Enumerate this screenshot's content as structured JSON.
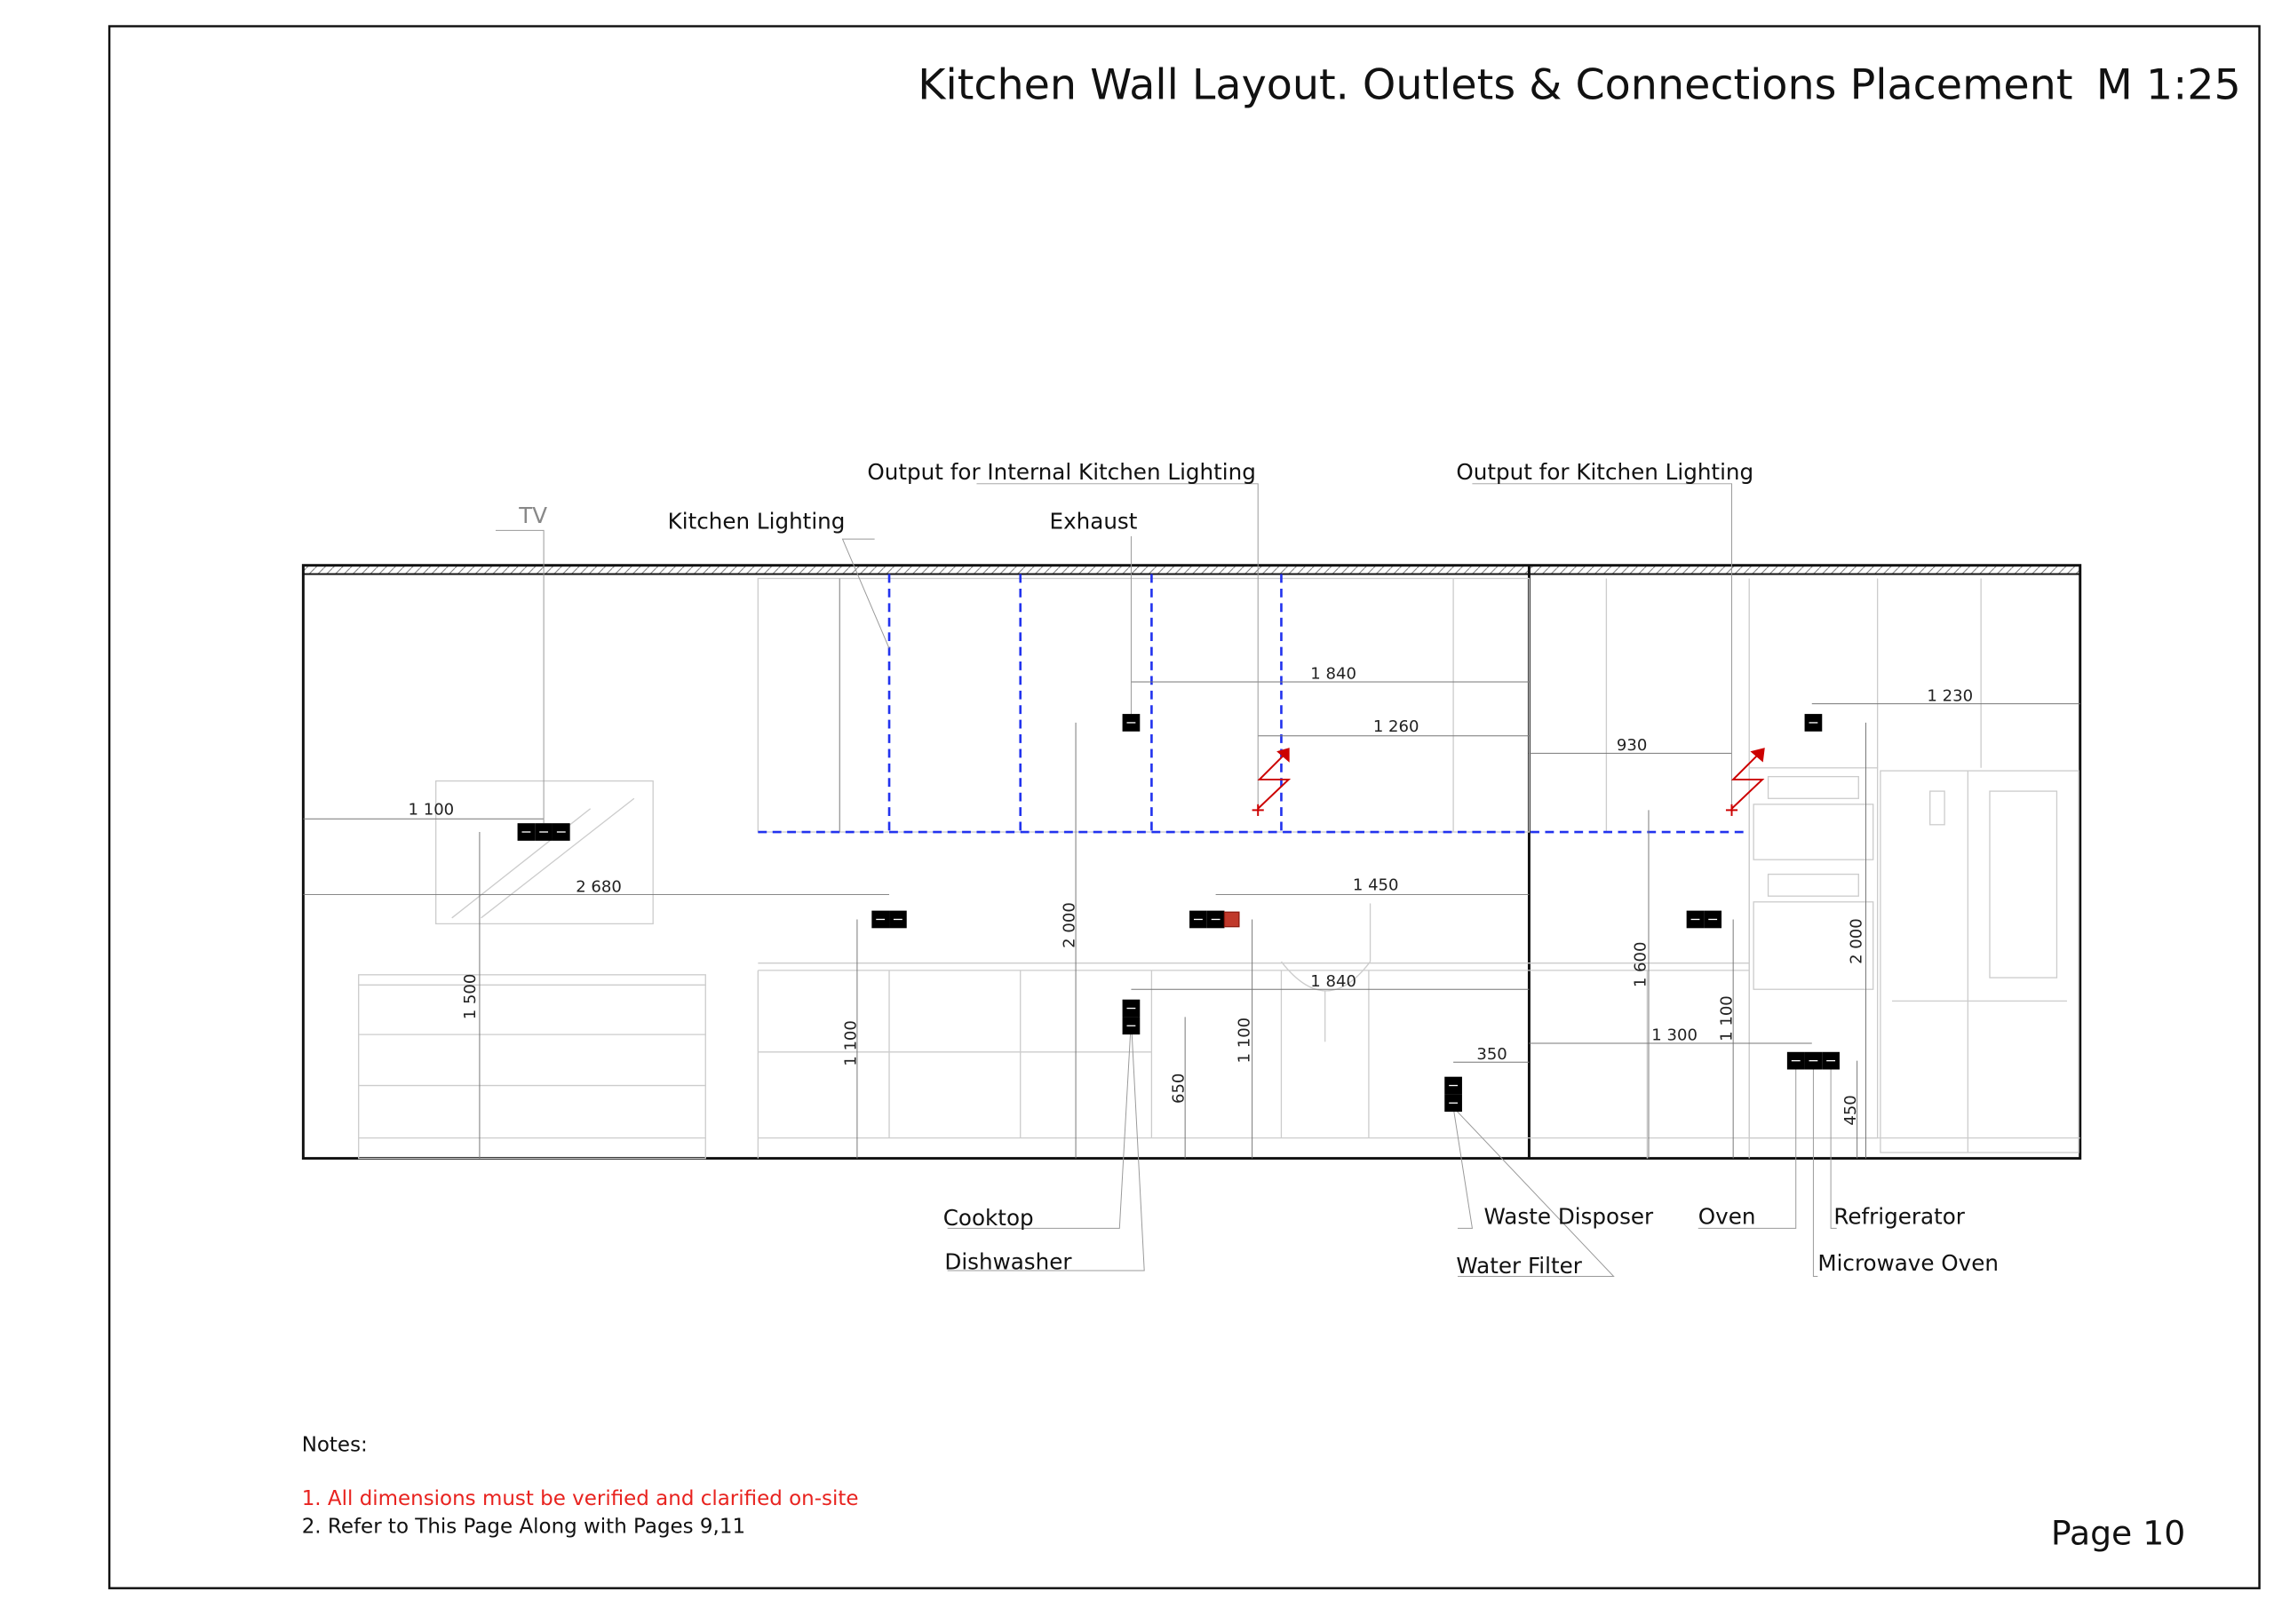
{
  "title": "Kitchen Wall Layout. Outlets & Connections Placement",
  "scale": "M 1:25",
  "labels": {
    "tv": "TV",
    "kitchen_lighting": "Kitchen Lighting",
    "output_internal_lighting": "Output for Internal Kitchen Lighting",
    "exhaust": "Exhaust",
    "output_kitchen_lighting": "Output for Kitchen Lighting",
    "cooktop": "Cooktop",
    "dishwasher": "Dishwasher",
    "waste_disposer": "Waste Disposer",
    "water_filter": "Water Filter",
    "oven": "Oven",
    "refrigerator": "Refrigerator",
    "microwave_oven": "Microwave Oven"
  },
  "dimensions": {
    "h_tv": "1 100",
    "h_2680": "2 680",
    "h_exhaust": "1 840",
    "h_internal_light": "1 260",
    "h_1450": "1 450",
    "h_dishwasher": "1 840",
    "h_350": "350",
    "h_930": "930",
    "h_1230": "1 230",
    "h_1300": "1 300",
    "v_1500": "1 500",
    "v_1100_a": "1 100",
    "v_2000_a": "2 000",
    "v_650": "650",
    "v_1100_b": "1 100",
    "v_1600": "1 600",
    "v_1100_c": "1 100",
    "v_2000_b": "2 000",
    "v_450": "450"
  },
  "notes": {
    "heading": "Notes:",
    "items": [
      "1. All dimensions must be verified and clarified on-site",
      "2. Refer to This Page Along with Pages 9,11"
    ]
  },
  "page": "Page 10",
  "colors": {
    "outlet": "#c0392b",
    "lighting_line": "#2233ee",
    "note_warning": "#e8231f"
  }
}
